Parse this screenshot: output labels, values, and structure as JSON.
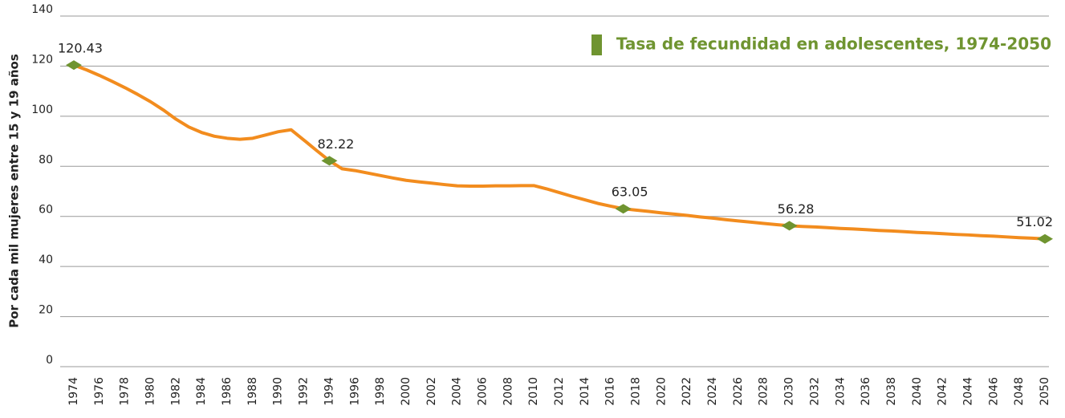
{
  "chart_data": {
    "type": "line",
    "y_label": "Por cada mil mujeres entre 15 y 19 años",
    "x": [
      1974,
      1975,
      1976,
      1977,
      1978,
      1979,
      1980,
      1981,
      1982,
      1983,
      1984,
      1985,
      1986,
      1987,
      1988,
      1989,
      1990,
      1991,
      1992,
      1993,
      1994,
      1995,
      1996,
      1997,
      1998,
      1999,
      2000,
      2001,
      2002,
      2003,
      2004,
      2005,
      2006,
      2007,
      2008,
      2009,
      2010,
      2011,
      2012,
      2013,
      2014,
      2015,
      2016,
      2017,
      2018,
      2019,
      2020,
      2021,
      2022,
      2023,
      2024,
      2025,
      2026,
      2027,
      2028,
      2029,
      2030,
      2031,
      2032,
      2033,
      2034,
      2035,
      2036,
      2037,
      2038,
      2039,
      2040,
      2041,
      2042,
      2043,
      2044,
      2045,
      2046,
      2047,
      2048,
      2049,
      2050
    ],
    "series": [
      {
        "name": "Tasa de fecundidad en adolescentes, 1974-2050",
        "color": "#f28c1e",
        "marker_color": "#6f9430",
        "values": [
          120.43,
          118.5,
          116.3,
          113.9,
          111.4,
          108.7,
          105.8,
          102.5,
          98.8,
          95.7,
          93.5,
          92.0,
          91.2,
          90.8,
          91.2,
          92.5,
          93.8,
          94.6,
          90.5,
          86.3,
          82.22,
          79.0,
          78.3,
          77.3,
          76.3,
          75.3,
          74.4,
          73.8,
          73.3,
          72.7,
          72.2,
          72.1,
          72.1,
          72.2,
          72.2,
          72.3,
          72.3,
          71.0,
          69.5,
          68.0,
          66.6,
          65.2,
          64.1,
          63.05,
          62.5,
          62.0,
          61.4,
          60.9,
          60.4,
          59.8,
          59.3,
          58.7,
          58.2,
          57.7,
          57.2,
          56.7,
          56.28,
          56.0,
          55.8,
          55.5,
          55.2,
          55.0,
          54.7,
          54.4,
          54.2,
          53.9,
          53.6,
          53.4,
          53.1,
          52.8,
          52.6,
          52.3,
          52.1,
          51.8,
          51.5,
          51.3,
          51.02
        ],
        "value_labels": [
          "120.43",
          null,
          null,
          null,
          null,
          null,
          null,
          null,
          null,
          null,
          null,
          null,
          null,
          null,
          null,
          null,
          null,
          null,
          null,
          null,
          "82.22",
          null,
          null,
          null,
          null,
          null,
          null,
          null,
          null,
          null,
          null,
          null,
          null,
          null,
          null,
          null,
          null,
          null,
          null,
          null,
          null,
          null,
          null,
          "63.05",
          null,
          null,
          null,
          null,
          null,
          null,
          null,
          null,
          null,
          null,
          null,
          null,
          "56.28",
          null,
          null,
          null,
          null,
          null,
          null,
          null,
          null,
          null,
          null,
          null,
          null,
          null,
          null,
          null,
          null,
          null,
          null,
          null,
          "51.02"
        ]
      }
    ],
    "xlim": [
      1974,
      2050
    ],
    "xticks": [
      1974,
      1976,
      1978,
      1980,
      1982,
      1984,
      1986,
      1988,
      1990,
      1992,
      1994,
      1996,
      1998,
      2000,
      2002,
      2004,
      2006,
      2008,
      2010,
      2012,
      2014,
      2016,
      2018,
      2020,
      2022,
      2024,
      2026,
      2028,
      2030,
      2032,
      2034,
      2036,
      2038,
      2040,
      2042,
      2044,
      2046,
      2048,
      2050
    ],
    "ylim": [
      0,
      140
    ],
    "yticks": [
      0,
      20,
      40,
      60,
      80,
      100,
      120,
      140
    ],
    "grid": true,
    "legend": "top-right"
  }
}
